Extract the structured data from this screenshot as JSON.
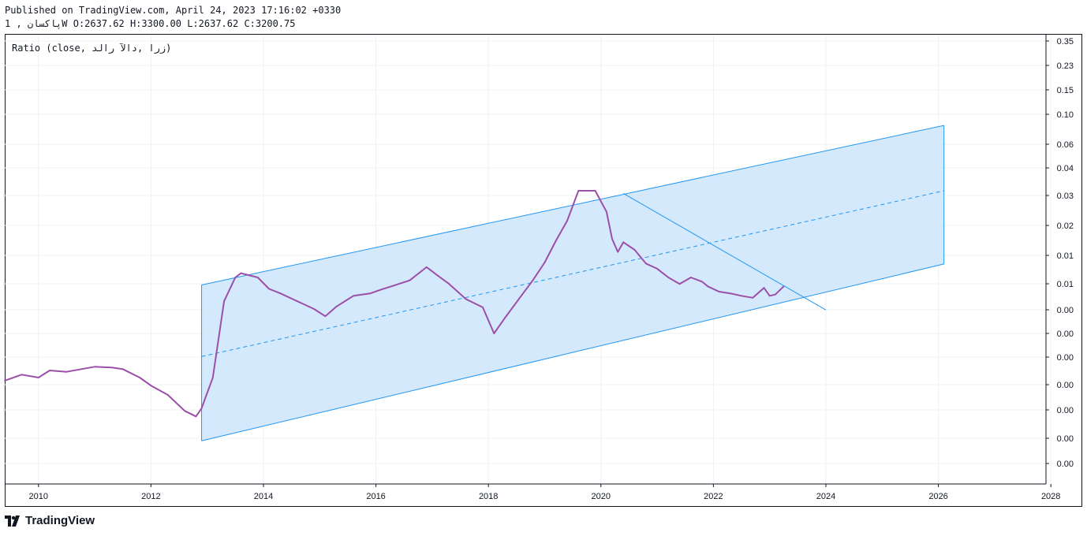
{
  "header": {
    "published": "Published on TradingView.com, April 24, 2023 17:16:02 +0330",
    "symbol_line": "پاکسان , 1W O:2637.62 H:3300.00 L:2637.62 C:3200.75"
  },
  "legend": "Ratio (close, زرا ,دالآ رالد)",
  "brand": "TradingView",
  "colors": {
    "series": "#9c4fa8",
    "channel_line": "#2196f3",
    "channel_fill": "#cfe7fb",
    "grid": "#eef0f3",
    "axis_text": "#131722"
  },
  "chart_data": {
    "type": "line",
    "title": "",
    "xlabel": "",
    "ylabel": "",
    "x_ticks": [
      "2010",
      "2012",
      "2014",
      "2016",
      "2018",
      "2020",
      "2022",
      "2024",
      "2026",
      "2028"
    ],
    "y_ticks": [
      "0.35",
      "0.23",
      "0.15",
      "0.10",
      "0.06",
      "0.04",
      "0.03",
      "0.02",
      "0.01",
      "0.01",
      "0.00",
      "0.00",
      "0.00",
      "0.00",
      "0.00",
      "0.00",
      "0.00"
    ],
    "series": [
      {
        "x": [
          2009.4,
          2009.7,
          2010.0,
          2010.2,
          2010.5,
          2010.8,
          2011.0,
          2011.3,
          2011.5,
          2011.8,
          2012.0,
          2012.3,
          2012.6,
          2012.8,
          2012.9,
          2013.1,
          2013.3,
          2013.5,
          2013.6,
          2013.9,
          2014.1,
          2014.3,
          2014.6,
          2014.9,
          2015.1,
          2015.3,
          2015.6,
          2015.9,
          2016.1,
          2016.3,
          2016.6,
          2016.9,
          2017.1,
          2017.3,
          2017.6,
          2017.9,
          2018.1,
          2018.3,
          2018.6,
          2018.8,
          2019.0,
          2019.2,
          2019.4,
          2019.6,
          2019.9,
          2020.1,
          2020.2,
          2020.3,
          2020.4,
          2020.6,
          2020.8,
          2021.0,
          2021.2,
          2021.4,
          2021.6,
          2021.8,
          2021.9,
          2022.1,
          2022.3,
          2022.5,
          2022.7,
          2022.9,
          2023.0,
          2023.1,
          2023.25
        ],
        "y": [
          0.00038,
          0.00042,
          0.0004,
          0.00045,
          0.00044,
          0.00049,
          0.00054,
          0.00052,
          0.00048,
          0.0004,
          0.00035,
          0.0003,
          0.00023,
          0.00021,
          0.00024,
          0.0004,
          0.006,
          0.0105,
          0.0112,
          0.0105,
          0.008,
          0.0072,
          0.006,
          0.005,
          0.0043,
          0.0053,
          0.0068,
          0.0072,
          0.0079,
          0.0086,
          0.0098,
          0.0123,
          0.0108,
          0.009,
          0.0063,
          0.0052,
          0.003,
          0.0042,
          0.007,
          0.01,
          0.0132,
          0.0178,
          0.0225,
          0.032,
          0.032,
          0.025,
          0.0182,
          0.0155,
          0.0175,
          0.016,
          0.013,
          0.012,
          0.0105,
          0.009,
          0.0105,
          0.0095,
          0.0085,
          0.0075,
          0.0072,
          0.0068,
          0.0065,
          0.0082,
          0.0068,
          0.007,
          0.0085
        ]
      }
    ],
    "channel": {
      "upper": {
        "x": [
          2012.9,
          2026.1
        ],
        "y": [
          0.0088,
          0.091
        ]
      },
      "mid": {
        "x": [
          2012.9,
          2026.1
        ],
        "y": [
          0.00089,
          0.032
        ]
      },
      "lower": {
        "x": [
          2012.9,
          2026.1
        ],
        "y": [
          0.00014,
          0.0129
        ]
      }
    },
    "trendline": {
      "x": [
        2020.4,
        2024.0
      ],
      "y": [
        0.031,
        0.0049
      ]
    }
  }
}
